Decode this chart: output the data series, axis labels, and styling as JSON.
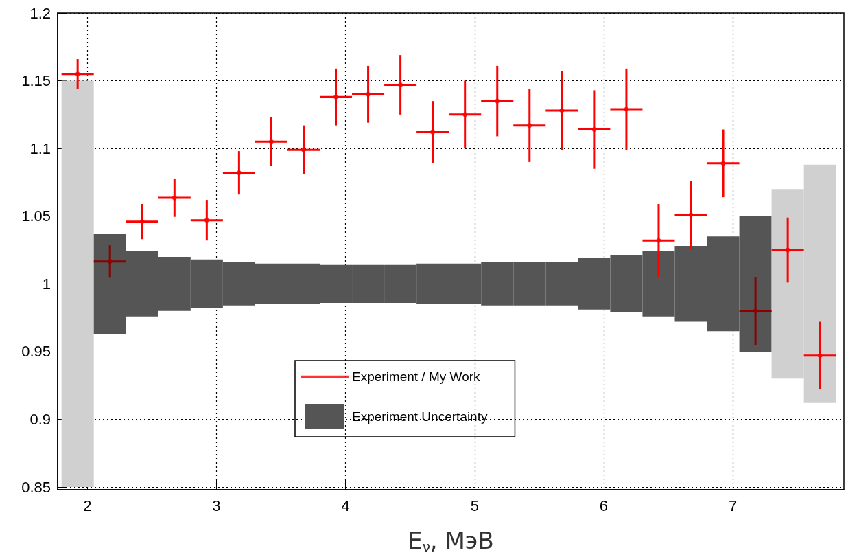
{
  "chart_data": {
    "type": "scatter",
    "xlabel": "E$_{ν}$, МэВ",
    "xlim": [
      1.77,
      7.86
    ],
    "xticks": [
      2,
      3,
      4,
      5,
      6,
      7
    ],
    "ylim": [
      0.848,
      1.2
    ],
    "yticks": [
      0.85,
      0.9,
      0.95,
      1,
      1.05,
      1.1,
      1.15,
      1.2
    ],
    "grid": true,
    "legend": "bottom",
    "series": [
      {
        "name": "Experiment / My Work",
        "color": "#ff0000",
        "x": [
          1.925,
          2.175,
          2.425,
          2.675,
          2.925,
          3.175,
          3.425,
          3.675,
          3.925,
          4.175,
          4.425,
          4.675,
          4.925,
          5.175,
          5.425,
          5.675,
          5.925,
          6.175,
          6.425,
          6.675,
          6.925,
          7.175,
          7.425,
          7.675
        ],
        "values": [
          1.155,
          1.0165,
          1.046,
          1.0635,
          1.047,
          1.082,
          1.105,
          1.099,
          1.138,
          1.14,
          1.147,
          1.112,
          1.125,
          1.135,
          1.117,
          1.128,
          1.114,
          1.129,
          1.032,
          1.051,
          1.089,
          0.98,
          1.025,
          0.947
        ],
        "errors": [
          0.011,
          0.012,
          0.013,
          0.014,
          0.015,
          0.016,
          0.018,
          0.018,
          0.021,
          0.021,
          0.022,
          0.023,
          0.025,
          0.026,
          0.027,
          0.029,
          0.029,
          0.03,
          0.027,
          0.025,
          0.025,
          0.025,
          0.024,
          0.025
        ],
        "xerrors": [
          0.125,
          0.125,
          0.125,
          0.125,
          0.125,
          0.125,
          0.125,
          0.125,
          0.125,
          0.125,
          0.125,
          0.125,
          0.125,
          0.125,
          0.125,
          0.125,
          0.125,
          0.125,
          0.125,
          0.125,
          0.125,
          0.125,
          0.125,
          0.125
        ],
        "colors": [
          "#ff0000",
          "#8b0000",
          "#ff0000",
          "#ff0000",
          "#ff0000",
          "#ff0000",
          "#ff0000",
          "#ff0000",
          "#ff0000",
          "#ff0000",
          "#ff0000",
          "#ff0000",
          "#ff0000",
          "#ff0000",
          "#ff0000",
          "#ff0000",
          "#ff0000",
          "#ff0000",
          "#ff0000",
          "#ff0000",
          "#ff0000",
          "#8b0000",
          "#ff0000",
          "#ff0000"
        ]
      },
      {
        "name": "Experiment Uncertainty",
        "type": "bar",
        "color": "#555555",
        "x": [
          1.925,
          2.175,
          2.425,
          2.675,
          2.925,
          3.175,
          3.425,
          3.675,
          3.925,
          4.175,
          4.425,
          4.675,
          4.925,
          5.175,
          5.425,
          5.675,
          5.925,
          6.175,
          6.425,
          6.675,
          6.925,
          7.175,
          7.425,
          7.675
        ],
        "base": [
          0.85,
          0.963,
          0.976,
          0.98,
          0.982,
          0.984,
          0.985,
          0.985,
          0.986,
          0.986,
          0.986,
          0.985,
          0.985,
          0.984,
          0.984,
          0.984,
          0.981,
          0.979,
          0.976,
          0.972,
          0.965,
          0.95,
          0.93,
          0.912
        ],
        "values": [
          0.3,
          0.074,
          0.048,
          0.04,
          0.036,
          0.032,
          0.03,
          0.03,
          0.028,
          0.028,
          0.028,
          0.03,
          0.03,
          0.032,
          0.032,
          0.032,
          0.038,
          0.042,
          0.048,
          0.056,
          0.07,
          0.1,
          0.14,
          0.176
        ],
        "colors": [
          "#d0d0d0",
          "#555555",
          "#555555",
          "#555555",
          "#555555",
          "#555555",
          "#555555",
          "#555555",
          "#555555",
          "#555555",
          "#555555",
          "#555555",
          "#555555",
          "#555555",
          "#555555",
          "#555555",
          "#555555",
          "#555555",
          "#555555",
          "#555555",
          "#555555",
          "#555555",
          "#d0d0d0",
          "#d0d0d0"
        ]
      }
    ]
  }
}
